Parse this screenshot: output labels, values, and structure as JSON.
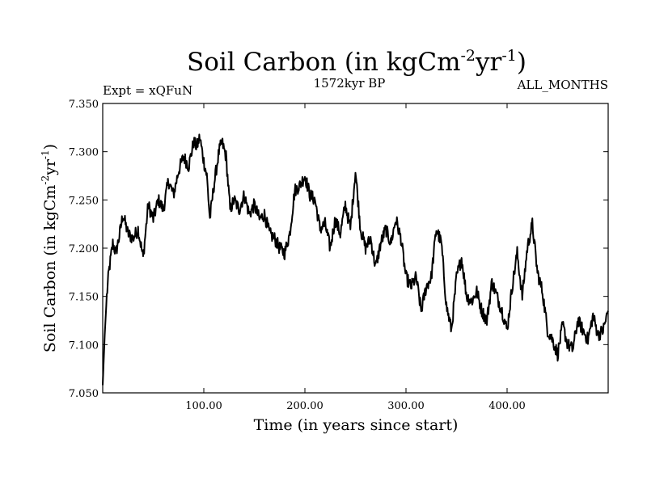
{
  "chart_data": {
    "type": "line",
    "title": {
      "main": "Soil Carbon (in kgCm",
      "sup1": "-2",
      "mid": "yr",
      "sup2": "-1",
      "end": ")"
    },
    "subtitle_left": "Expt = xQFuN",
    "subtitle_center": "1572kyr BP",
    "subtitle_right": "ALL_MONTHS",
    "xlabel": "Time (in years since start)",
    "ylabel": {
      "main": "Soil Carbon (in kgCm",
      "sup1": "-2",
      "mid": "yr",
      "sup2": "-1",
      "end": ")"
    },
    "xlim": [
      0,
      500
    ],
    "ylim": [
      7.05,
      7.35
    ],
    "xticks": [
      100,
      200,
      300,
      400
    ],
    "xtick_labels": [
      "100.00",
      "200.00",
      "300.00",
      "400.00"
    ],
    "yticks": [
      7.05,
      7.1,
      7.15,
      7.2,
      7.25,
      7.3,
      7.35
    ],
    "ytick_labels": [
      "7.050",
      "7.100",
      "7.150",
      "7.200",
      "7.250",
      "7.300",
      "7.350"
    ],
    "series": [
      {
        "name": "Soil Carbon",
        "color": "#000000",
        "x": [
          0,
          2,
          4,
          6,
          8,
          10,
          13,
          16,
          20,
          25,
          30,
          35,
          40,
          45,
          50,
          55,
          60,
          65,
          70,
          75,
          80,
          85,
          90,
          93,
          96,
          100,
          103,
          106,
          110,
          115,
          118,
          122,
          126,
          130,
          135,
          140,
          145,
          150,
          155,
          160,
          165,
          170,
          175,
          180,
          185,
          190,
          195,
          200,
          205,
          210,
          215,
          220,
          225,
          230,
          235,
          240,
          245,
          250,
          255,
          260,
          265,
          270,
          275,
          280,
          285,
          290,
          295,
          300,
          305,
          310,
          315,
          320,
          325,
          330,
          335,
          340,
          345,
          350,
          355,
          360,
          365,
          370,
          375,
          380,
          385,
          390,
          395,
          400,
          405,
          410,
          415,
          420,
          425,
          430,
          435,
          440,
          445,
          450,
          455,
          460,
          465,
          470,
          475,
          480,
          485,
          490,
          495,
          500
        ],
        "values": [
          7.058,
          7.11,
          7.15,
          7.175,
          7.19,
          7.205,
          7.195,
          7.21,
          7.235,
          7.215,
          7.21,
          7.22,
          7.19,
          7.245,
          7.23,
          7.25,
          7.24,
          7.27,
          7.255,
          7.28,
          7.295,
          7.285,
          7.31,
          7.305,
          7.315,
          7.29,
          7.275,
          7.23,
          7.265,
          7.3,
          7.31,
          7.295,
          7.24,
          7.25,
          7.24,
          7.255,
          7.235,
          7.245,
          7.23,
          7.235,
          7.215,
          7.21,
          7.2,
          7.195,
          7.215,
          7.26,
          7.265,
          7.275,
          7.255,
          7.25,
          7.22,
          7.225,
          7.2,
          7.23,
          7.215,
          7.245,
          7.22,
          7.28,
          7.22,
          7.2,
          7.21,
          7.18,
          7.205,
          7.22,
          7.205,
          7.23,
          7.21,
          7.17,
          7.16,
          7.17,
          7.135,
          7.16,
          7.17,
          7.22,
          7.205,
          7.14,
          7.115,
          7.17,
          7.19,
          7.15,
          7.145,
          7.155,
          7.135,
          7.125,
          7.165,
          7.15,
          7.135,
          7.115,
          7.16,
          7.195,
          7.15,
          7.2,
          7.225,
          7.175,
          7.155,
          7.115,
          7.105,
          7.09,
          7.12,
          7.1,
          7.095,
          7.125,
          7.115,
          7.105,
          7.13,
          7.11,
          7.115,
          7.135
        ]
      }
    ]
  }
}
